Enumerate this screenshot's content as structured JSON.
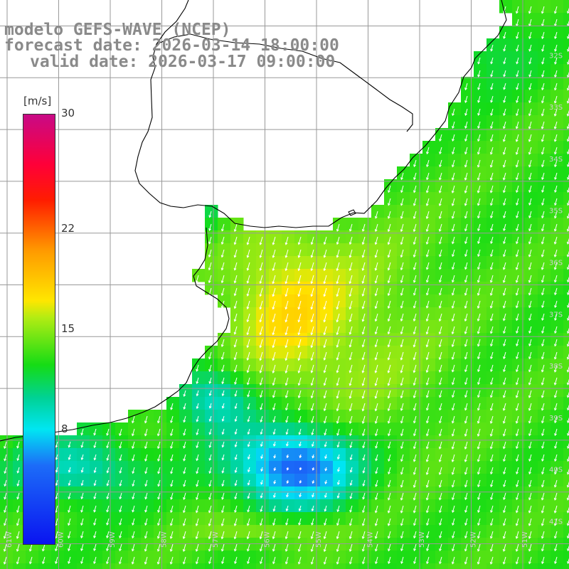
{
  "title": {
    "line1": "modelo GEFS-WAVE (NCEP)",
    "line2": "forecast date: 2026-03-14 18:00:00",
    "line3": "valid date: 2026-03-17 09:00:00"
  },
  "colorbar": {
    "units": "[m/s]",
    "min": 0,
    "max": 30,
    "ticks": [
      {
        "label": "30",
        "value": 30
      },
      {
        "label": "22",
        "value": 22
      },
      {
        "label": "15",
        "value": 15
      },
      {
        "label": "8",
        "value": 8
      }
    ],
    "stops": [
      {
        "value": 0,
        "color": "#0a14f0"
      },
      {
        "value": 5.5,
        "color": "#1c6cf8"
      },
      {
        "value": 8,
        "color": "#00e6f2"
      },
      {
        "value": 10.2,
        "color": "#00d296"
      },
      {
        "value": 12.5,
        "color": "#15dc15"
      },
      {
        "value": 15.8,
        "color": "#b2ec13"
      },
      {
        "value": 17,
        "color": "#ffe600"
      },
      {
        "value": 20.5,
        "color": "#ff9a00"
      },
      {
        "value": 24,
        "color": "#ff1d00"
      },
      {
        "value": 26.5,
        "color": "#ff0038"
      },
      {
        "value": 30,
        "color": "#c80a86"
      }
    ]
  },
  "lon_labels": [
    "61W",
    "60W",
    "59W",
    "58W",
    "57W",
    "56W",
    "55W",
    "54W",
    "53W",
    "52W",
    "51W"
  ],
  "lat_labels": [
    "32S",
    "33S",
    "34S",
    "35S",
    "36S",
    "37S",
    "38S",
    "39S",
    "40S",
    "41S"
  ],
  "colors": {
    "land": "#ffffff",
    "grid": "#999999",
    "coast": "#000000",
    "arrow": "#ffffff",
    "label_text": "#8a8a8a"
  }
}
